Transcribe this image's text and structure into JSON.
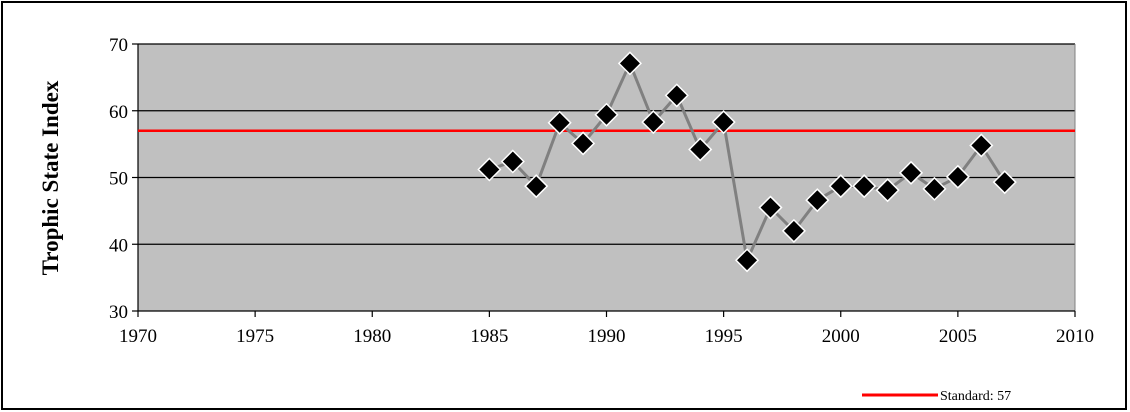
{
  "chart_data": {
    "type": "line",
    "title": "",
    "xlabel": "",
    "ylabel": "Trophic State Index",
    "xlim": [
      1970,
      2010
    ],
    "ylim": [
      30,
      70
    ],
    "x_ticks": [
      1970,
      1975,
      1980,
      1985,
      1990,
      1995,
      2000,
      2005,
      2010
    ],
    "y_ticks": [
      30,
      40,
      50,
      60,
      70
    ],
    "grid": "horizontal",
    "plot_background": "#c0c0c0",
    "series": [
      {
        "name": "",
        "color": "#808080",
        "marker": "diamond",
        "marker_color": "#000000",
        "x": [
          1985,
          1986,
          1987,
          1988,
          1989,
          1990,
          1991,
          1992,
          1993,
          1994,
          1995,
          1996,
          1997,
          1998,
          1999,
          2000,
          2001,
          2002,
          2003,
          2004,
          2005,
          2006,
          2007
        ],
        "y": [
          51.2,
          52.4,
          48.7,
          58.2,
          55.1,
          59.4,
          67.1,
          58.3,
          62.3,
          54.2,
          58.3,
          37.6,
          45.5,
          42.0,
          46.6,
          48.7,
          48.7,
          48.1,
          50.7,
          48.3,
          50.1,
          54.8,
          49.3
        ]
      }
    ],
    "reference_line": {
      "name": "Standard: 57",
      "value": 57,
      "color": "#ff0000"
    },
    "legend": {
      "placement": "bottom-right",
      "entries": [
        "Standard: 57"
      ]
    }
  }
}
